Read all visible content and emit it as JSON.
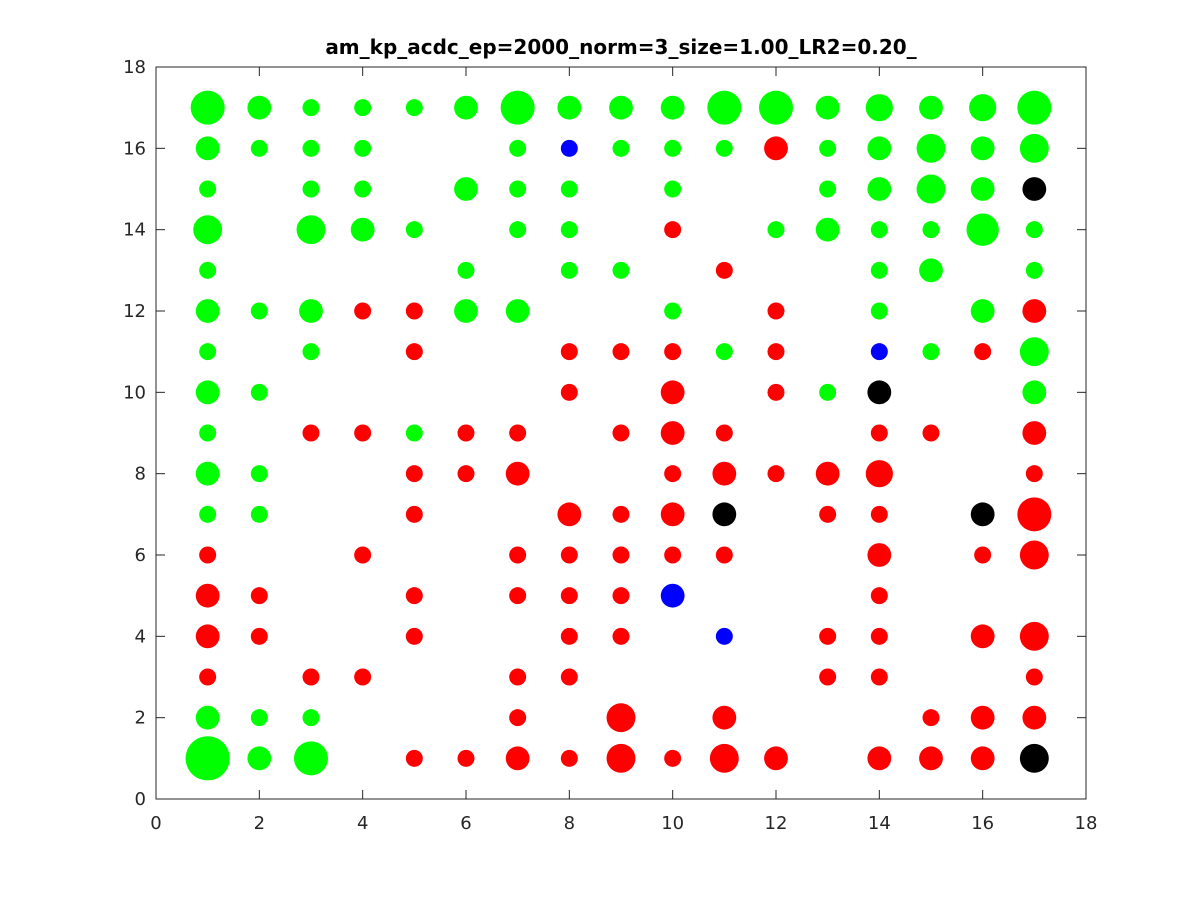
{
  "chart_data": {
    "type": "scatter",
    "title": "am_kp_acdc_ep=2000_norm=3_size=1.00_LR2=0.20_",
    "xlabel": "",
    "ylabel": "",
    "xlim": [
      0,
      18
    ],
    "ylim": [
      0,
      18
    ],
    "xticks": [
      0,
      2,
      4,
      6,
      8,
      10,
      12,
      14,
      16,
      18
    ],
    "yticks": [
      0,
      2,
      4,
      6,
      8,
      10,
      12,
      14,
      16,
      18
    ],
    "grid": false,
    "colors": {
      "green": "#00ff00",
      "red": "#ff0000",
      "blue": "#0000ff",
      "black": "#000000"
    },
    "points": [
      {
        "x": 1,
        "y": 17,
        "c": "green",
        "s": 2.0
      },
      {
        "x": 2,
        "y": 17,
        "c": "green",
        "s": 1.4
      },
      {
        "x": 3,
        "y": 17,
        "c": "green",
        "s": 1.0
      },
      {
        "x": 4,
        "y": 17,
        "c": "green",
        "s": 1.0
      },
      {
        "x": 5,
        "y": 17,
        "c": "green",
        "s": 1.0
      },
      {
        "x": 6,
        "y": 17,
        "c": "green",
        "s": 1.4
      },
      {
        "x": 7,
        "y": 17,
        "c": "green",
        "s": 2.0
      },
      {
        "x": 8,
        "y": 17,
        "c": "green",
        "s": 1.4
      },
      {
        "x": 9,
        "y": 17,
        "c": "green",
        "s": 1.4
      },
      {
        "x": 10,
        "y": 17,
        "c": "green",
        "s": 1.4
      },
      {
        "x": 11,
        "y": 17,
        "c": "green",
        "s": 2.0
      },
      {
        "x": 12,
        "y": 17,
        "c": "green",
        "s": 2.0
      },
      {
        "x": 13,
        "y": 17,
        "c": "green",
        "s": 1.4
      },
      {
        "x": 14,
        "y": 17,
        "c": "green",
        "s": 1.6
      },
      {
        "x": 15,
        "y": 17,
        "c": "green",
        "s": 1.4
      },
      {
        "x": 16,
        "y": 17,
        "c": "green",
        "s": 1.6
      },
      {
        "x": 17,
        "y": 17,
        "c": "green",
        "s": 2.0
      },
      {
        "x": 1,
        "y": 16,
        "c": "green",
        "s": 1.4
      },
      {
        "x": 2,
        "y": 16,
        "c": "green",
        "s": 1.0
      },
      {
        "x": 3,
        "y": 16,
        "c": "green",
        "s": 1.0
      },
      {
        "x": 4,
        "y": 16,
        "c": "green",
        "s": 1.0
      },
      {
        "x": 7,
        "y": 16,
        "c": "green",
        "s": 1.0
      },
      {
        "x": 8,
        "y": 16,
        "c": "blue",
        "s": 1.0
      },
      {
        "x": 9,
        "y": 16,
        "c": "green",
        "s": 1.0
      },
      {
        "x": 10,
        "y": 16,
        "c": "green",
        "s": 1.0
      },
      {
        "x": 11,
        "y": 16,
        "c": "green",
        "s": 1.0
      },
      {
        "x": 12,
        "y": 16,
        "c": "red",
        "s": 1.4
      },
      {
        "x": 13,
        "y": 16,
        "c": "green",
        "s": 1.0
      },
      {
        "x": 14,
        "y": 16,
        "c": "green",
        "s": 1.4
      },
      {
        "x": 15,
        "y": 16,
        "c": "green",
        "s": 1.7
      },
      {
        "x": 16,
        "y": 16,
        "c": "green",
        "s": 1.4
      },
      {
        "x": 17,
        "y": 16,
        "c": "green",
        "s": 1.7
      },
      {
        "x": 1,
        "y": 15,
        "c": "green",
        "s": 1.0
      },
      {
        "x": 3,
        "y": 15,
        "c": "green",
        "s": 1.0
      },
      {
        "x": 4,
        "y": 15,
        "c": "green",
        "s": 1.0
      },
      {
        "x": 6,
        "y": 15,
        "c": "green",
        "s": 1.4
      },
      {
        "x": 7,
        "y": 15,
        "c": "green",
        "s": 1.0
      },
      {
        "x": 8,
        "y": 15,
        "c": "green",
        "s": 1.0
      },
      {
        "x": 10,
        "y": 15,
        "c": "green",
        "s": 1.0
      },
      {
        "x": 13,
        "y": 15,
        "c": "green",
        "s": 1.0
      },
      {
        "x": 14,
        "y": 15,
        "c": "green",
        "s": 1.4
      },
      {
        "x": 15,
        "y": 15,
        "c": "green",
        "s": 1.7
      },
      {
        "x": 16,
        "y": 15,
        "c": "green",
        "s": 1.4
      },
      {
        "x": 17,
        "y": 15,
        "c": "black",
        "s": 1.4
      },
      {
        "x": 1,
        "y": 14,
        "c": "green",
        "s": 1.7
      },
      {
        "x": 3,
        "y": 14,
        "c": "green",
        "s": 1.7
      },
      {
        "x": 4,
        "y": 14,
        "c": "green",
        "s": 1.4
      },
      {
        "x": 5,
        "y": 14,
        "c": "green",
        "s": 1.0
      },
      {
        "x": 7,
        "y": 14,
        "c": "green",
        "s": 1.0
      },
      {
        "x": 8,
        "y": 14,
        "c": "green",
        "s": 1.0
      },
      {
        "x": 10,
        "y": 14,
        "c": "red",
        "s": 1.0
      },
      {
        "x": 12,
        "y": 14,
        "c": "green",
        "s": 1.0
      },
      {
        "x": 13,
        "y": 14,
        "c": "green",
        "s": 1.4
      },
      {
        "x": 14,
        "y": 14,
        "c": "green",
        "s": 1.0
      },
      {
        "x": 15,
        "y": 14,
        "c": "green",
        "s": 1.0
      },
      {
        "x": 16,
        "y": 14,
        "c": "green",
        "s": 1.9
      },
      {
        "x": 17,
        "y": 14,
        "c": "green",
        "s": 1.0
      },
      {
        "x": 1,
        "y": 13,
        "c": "green",
        "s": 1.0
      },
      {
        "x": 6,
        "y": 13,
        "c": "green",
        "s": 1.0
      },
      {
        "x": 8,
        "y": 13,
        "c": "green",
        "s": 1.0
      },
      {
        "x": 9,
        "y": 13,
        "c": "green",
        "s": 1.0
      },
      {
        "x": 11,
        "y": 13,
        "c": "red",
        "s": 1.0
      },
      {
        "x": 14,
        "y": 13,
        "c": "green",
        "s": 1.0
      },
      {
        "x": 15,
        "y": 13,
        "c": "green",
        "s": 1.4
      },
      {
        "x": 17,
        "y": 13,
        "c": "green",
        "s": 1.0
      },
      {
        "x": 1,
        "y": 12,
        "c": "green",
        "s": 1.4
      },
      {
        "x": 2,
        "y": 12,
        "c": "green",
        "s": 1.0
      },
      {
        "x": 3,
        "y": 12,
        "c": "green",
        "s": 1.4
      },
      {
        "x": 4,
        "y": 12,
        "c": "red",
        "s": 1.0
      },
      {
        "x": 5,
        "y": 12,
        "c": "red",
        "s": 1.0
      },
      {
        "x": 6,
        "y": 12,
        "c": "green",
        "s": 1.4
      },
      {
        "x": 7,
        "y": 12,
        "c": "green",
        "s": 1.4
      },
      {
        "x": 10,
        "y": 12,
        "c": "green",
        "s": 1.0
      },
      {
        "x": 12,
        "y": 12,
        "c": "red",
        "s": 1.0
      },
      {
        "x": 14,
        "y": 12,
        "c": "green",
        "s": 1.0
      },
      {
        "x": 16,
        "y": 12,
        "c": "green",
        "s": 1.4
      },
      {
        "x": 17,
        "y": 12,
        "c": "red",
        "s": 1.4
      },
      {
        "x": 1,
        "y": 11,
        "c": "green",
        "s": 1.0
      },
      {
        "x": 3,
        "y": 11,
        "c": "green",
        "s": 1.0
      },
      {
        "x": 5,
        "y": 11,
        "c": "red",
        "s": 1.0
      },
      {
        "x": 8,
        "y": 11,
        "c": "red",
        "s": 1.0
      },
      {
        "x": 9,
        "y": 11,
        "c": "red",
        "s": 1.0
      },
      {
        "x": 10,
        "y": 11,
        "c": "red",
        "s": 1.0
      },
      {
        "x": 11,
        "y": 11,
        "c": "green",
        "s": 1.0
      },
      {
        "x": 12,
        "y": 11,
        "c": "red",
        "s": 1.0
      },
      {
        "x": 14,
        "y": 11,
        "c": "blue",
        "s": 1.0
      },
      {
        "x": 15,
        "y": 11,
        "c": "green",
        "s": 1.0
      },
      {
        "x": 16,
        "y": 11,
        "c": "red",
        "s": 1.0
      },
      {
        "x": 17,
        "y": 11,
        "c": "green",
        "s": 1.7
      },
      {
        "x": 1,
        "y": 10,
        "c": "green",
        "s": 1.4
      },
      {
        "x": 2,
        "y": 10,
        "c": "green",
        "s": 1.0
      },
      {
        "x": 8,
        "y": 10,
        "c": "red",
        "s": 1.0
      },
      {
        "x": 10,
        "y": 10,
        "c": "red",
        "s": 1.4
      },
      {
        "x": 12,
        "y": 10,
        "c": "red",
        "s": 1.0
      },
      {
        "x": 13,
        "y": 10,
        "c": "green",
        "s": 1.0
      },
      {
        "x": 14,
        "y": 10,
        "c": "black",
        "s": 1.4
      },
      {
        "x": 17,
        "y": 10,
        "c": "green",
        "s": 1.4
      },
      {
        "x": 1,
        "y": 9,
        "c": "green",
        "s": 1.0
      },
      {
        "x": 3,
        "y": 9,
        "c": "red",
        "s": 1.0
      },
      {
        "x": 4,
        "y": 9,
        "c": "red",
        "s": 1.0
      },
      {
        "x": 5,
        "y": 9,
        "c": "green",
        "s": 1.0
      },
      {
        "x": 6,
        "y": 9,
        "c": "red",
        "s": 1.0
      },
      {
        "x": 7,
        "y": 9,
        "c": "red",
        "s": 1.0
      },
      {
        "x": 9,
        "y": 9,
        "c": "red",
        "s": 1.0
      },
      {
        "x": 10,
        "y": 9,
        "c": "red",
        "s": 1.4
      },
      {
        "x": 11,
        "y": 9,
        "c": "red",
        "s": 1.0
      },
      {
        "x": 14,
        "y": 9,
        "c": "red",
        "s": 1.0
      },
      {
        "x": 15,
        "y": 9,
        "c": "red",
        "s": 1.0
      },
      {
        "x": 17,
        "y": 9,
        "c": "red",
        "s": 1.4
      },
      {
        "x": 1,
        "y": 8,
        "c": "green",
        "s": 1.4
      },
      {
        "x": 2,
        "y": 8,
        "c": "green",
        "s": 1.0
      },
      {
        "x": 5,
        "y": 8,
        "c": "red",
        "s": 1.0
      },
      {
        "x": 6,
        "y": 8,
        "c": "red",
        "s": 1.0
      },
      {
        "x": 7,
        "y": 8,
        "c": "red",
        "s": 1.4
      },
      {
        "x": 10,
        "y": 8,
        "c": "red",
        "s": 1.0
      },
      {
        "x": 11,
        "y": 8,
        "c": "red",
        "s": 1.4
      },
      {
        "x": 12,
        "y": 8,
        "c": "red",
        "s": 1.0
      },
      {
        "x": 13,
        "y": 8,
        "c": "red",
        "s": 1.4
      },
      {
        "x": 14,
        "y": 8,
        "c": "red",
        "s": 1.6
      },
      {
        "x": 17,
        "y": 8,
        "c": "red",
        "s": 1.0
      },
      {
        "x": 1,
        "y": 7,
        "c": "green",
        "s": 1.0
      },
      {
        "x": 2,
        "y": 7,
        "c": "green",
        "s": 1.0
      },
      {
        "x": 5,
        "y": 7,
        "c": "red",
        "s": 1.0
      },
      {
        "x": 8,
        "y": 7,
        "c": "red",
        "s": 1.4
      },
      {
        "x": 9,
        "y": 7,
        "c": "red",
        "s": 1.0
      },
      {
        "x": 10,
        "y": 7,
        "c": "red",
        "s": 1.4
      },
      {
        "x": 11,
        "y": 7,
        "c": "black",
        "s": 1.4
      },
      {
        "x": 13,
        "y": 7,
        "c": "red",
        "s": 1.0
      },
      {
        "x": 14,
        "y": 7,
        "c": "red",
        "s": 1.0
      },
      {
        "x": 16,
        "y": 7,
        "c": "black",
        "s": 1.4
      },
      {
        "x": 17,
        "y": 7,
        "c": "red",
        "s": 2.0
      },
      {
        "x": 1,
        "y": 6,
        "c": "red",
        "s": 1.0
      },
      {
        "x": 4,
        "y": 6,
        "c": "red",
        "s": 1.0
      },
      {
        "x": 7,
        "y": 6,
        "c": "red",
        "s": 1.0
      },
      {
        "x": 8,
        "y": 6,
        "c": "red",
        "s": 1.0
      },
      {
        "x": 9,
        "y": 6,
        "c": "red",
        "s": 1.0
      },
      {
        "x": 10,
        "y": 6,
        "c": "red",
        "s": 1.0
      },
      {
        "x": 11,
        "y": 6,
        "c": "red",
        "s": 1.0
      },
      {
        "x": 14,
        "y": 6,
        "c": "red",
        "s": 1.4
      },
      {
        "x": 16,
        "y": 6,
        "c": "red",
        "s": 1.0
      },
      {
        "x": 17,
        "y": 6,
        "c": "red",
        "s": 1.7
      },
      {
        "x": 1,
        "y": 5,
        "c": "red",
        "s": 1.4
      },
      {
        "x": 2,
        "y": 5,
        "c": "red",
        "s": 1.0
      },
      {
        "x": 5,
        "y": 5,
        "c": "red",
        "s": 1.0
      },
      {
        "x": 7,
        "y": 5,
        "c": "red",
        "s": 1.0
      },
      {
        "x": 8,
        "y": 5,
        "c": "red",
        "s": 1.0
      },
      {
        "x": 9,
        "y": 5,
        "c": "red",
        "s": 1.0
      },
      {
        "x": 10,
        "y": 5,
        "c": "blue",
        "s": 1.4
      },
      {
        "x": 14,
        "y": 5,
        "c": "red",
        "s": 1.0
      },
      {
        "x": 1,
        "y": 4,
        "c": "red",
        "s": 1.4
      },
      {
        "x": 2,
        "y": 4,
        "c": "red",
        "s": 1.0
      },
      {
        "x": 5,
        "y": 4,
        "c": "red",
        "s": 1.0
      },
      {
        "x": 8,
        "y": 4,
        "c": "red",
        "s": 1.0
      },
      {
        "x": 9,
        "y": 4,
        "c": "red",
        "s": 1.0
      },
      {
        "x": 11,
        "y": 4,
        "c": "blue",
        "s": 1.0
      },
      {
        "x": 13,
        "y": 4,
        "c": "red",
        "s": 1.0
      },
      {
        "x": 14,
        "y": 4,
        "c": "red",
        "s": 1.0
      },
      {
        "x": 16,
        "y": 4,
        "c": "red",
        "s": 1.4
      },
      {
        "x": 17,
        "y": 4,
        "c": "red",
        "s": 1.7
      },
      {
        "x": 1,
        "y": 3,
        "c": "red",
        "s": 1.0
      },
      {
        "x": 3,
        "y": 3,
        "c": "red",
        "s": 1.0
      },
      {
        "x": 4,
        "y": 3,
        "c": "red",
        "s": 1.0
      },
      {
        "x": 7,
        "y": 3,
        "c": "red",
        "s": 1.0
      },
      {
        "x": 8,
        "y": 3,
        "c": "red",
        "s": 1.0
      },
      {
        "x": 13,
        "y": 3,
        "c": "red",
        "s": 1.0
      },
      {
        "x": 14,
        "y": 3,
        "c": "red",
        "s": 1.0
      },
      {
        "x": 17,
        "y": 3,
        "c": "red",
        "s": 1.0
      },
      {
        "x": 1,
        "y": 2,
        "c": "green",
        "s": 1.4
      },
      {
        "x": 2,
        "y": 2,
        "c": "green",
        "s": 1.0
      },
      {
        "x": 3,
        "y": 2,
        "c": "green",
        "s": 1.0
      },
      {
        "x": 7,
        "y": 2,
        "c": "red",
        "s": 1.0
      },
      {
        "x": 9,
        "y": 2,
        "c": "red",
        "s": 1.7
      },
      {
        "x": 11,
        "y": 2,
        "c": "red",
        "s": 1.4
      },
      {
        "x": 15,
        "y": 2,
        "c": "red",
        "s": 1.0
      },
      {
        "x": 16,
        "y": 2,
        "c": "red",
        "s": 1.4
      },
      {
        "x": 17,
        "y": 2,
        "c": "red",
        "s": 1.4
      },
      {
        "x": 1,
        "y": 1,
        "c": "green",
        "s": 2.6
      },
      {
        "x": 2,
        "y": 1,
        "c": "green",
        "s": 1.4
      },
      {
        "x": 3,
        "y": 1,
        "c": "green",
        "s": 2.0
      },
      {
        "x": 5,
        "y": 1,
        "c": "red",
        "s": 1.0
      },
      {
        "x": 6,
        "y": 1,
        "c": "red",
        "s": 1.0
      },
      {
        "x": 7,
        "y": 1,
        "c": "red",
        "s": 1.4
      },
      {
        "x": 8,
        "y": 1,
        "c": "red",
        "s": 1.0
      },
      {
        "x": 9,
        "y": 1,
        "c": "red",
        "s": 1.7
      },
      {
        "x": 10,
        "y": 1,
        "c": "red",
        "s": 1.0
      },
      {
        "x": 11,
        "y": 1,
        "c": "red",
        "s": 1.7
      },
      {
        "x": 12,
        "y": 1,
        "c": "red",
        "s": 1.4
      },
      {
        "x": 14,
        "y": 1,
        "c": "red",
        "s": 1.4
      },
      {
        "x": 15,
        "y": 1,
        "c": "red",
        "s": 1.4
      },
      {
        "x": 16,
        "y": 1,
        "c": "red",
        "s": 1.4
      },
      {
        "x": 17,
        "y": 1,
        "c": "black",
        "s": 1.7
      }
    ]
  }
}
